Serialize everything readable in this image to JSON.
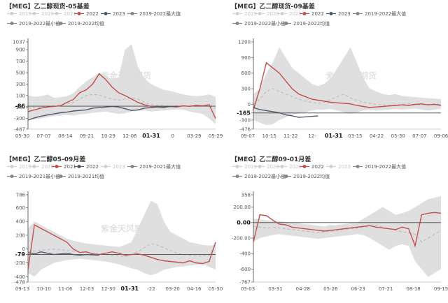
{
  "colors": {
    "range_band": "#dcdcdc",
    "avg_line": "#bdbdbd",
    "current": "#c0504d",
    "previous": "#4d5b6b",
    "axis": "#444444",
    "faint_legend": "#d0d0d0"
  },
  "watermark": "紫金天风期货",
  "chart_data": [
    {
      "type": "line",
      "title": "【MEG】乙二醇现货-05基差",
      "legend": [
        "2019",
        "2020",
        "2021",
        "2022",
        "2023",
        "2019-2022最大值",
        "2019-2022最小值",
        "2019-2022均值"
      ],
      "y_ticks": [
        "1037",
        "900",
        "700",
        "500",
        "300",
        "100",
        "-86",
        "-100",
        "-300",
        "-487"
      ],
      "ylim": [
        -487,
        1037
      ],
      "x_ticks": [
        "05-30",
        "07-07",
        "08-14",
        "09-21",
        "10-29",
        "12-06",
        "01-31",
        "0",
        "03-29",
        "05-29"
      ],
      "x_highlight": "01-31",
      "reference_value": -86,
      "max_range": [
        100,
        80,
        90,
        120,
        60,
        70,
        90,
        140,
        250,
        350,
        420,
        500,
        450,
        380,
        420,
        900,
        1000,
        600,
        400,
        300,
        250,
        200,
        180,
        150,
        120,
        100,
        90,
        100,
        120,
        80
      ],
      "min_range": [
        -300,
        -320,
        -300,
        -280,
        -260,
        -250,
        -240,
        -250,
        -230,
        -220,
        -200,
        -190,
        -180,
        -200,
        -220,
        -210,
        -180,
        -170,
        -160,
        -180,
        -170,
        -160,
        -150,
        -140,
        -150,
        -180,
        -200,
        -220,
        -300,
        -400
      ],
      "average": [
        -120,
        -110,
        -100,
        -90,
        -80,
        -60,
        -40,
        -20,
        40,
        100,
        120,
        110,
        70,
        40,
        20,
        40,
        60,
        40,
        -20,
        -60,
        -70,
        -80,
        -90,
        -80,
        -80,
        -80,
        -70,
        -70,
        -90,
        -120
      ],
      "series": [
        {
          "name": "2022",
          "values": [
            -180,
            -150,
            -120,
            -100,
            -90,
            -80,
            -20,
            30,
            150,
            200,
            300,
            480,
            380,
            250,
            150,
            100,
            40,
            -20,
            -60,
            -90,
            -100,
            -110,
            -90,
            -100,
            -80,
            -90,
            -70,
            -80,
            -60,
            -300
          ]
        },
        {
          "name": "2023",
          "values": [
            -330,
            -290,
            -260,
            -240,
            -220,
            -200,
            -190,
            -170,
            -160,
            -150,
            -120,
            -110,
            -100,
            -90,
            -100,
            -130,
            -160,
            -150,
            -120,
            -110,
            -100,
            -100,
            -90,
            -95
          ]
        }
      ]
    },
    {
      "type": "line",
      "title": "【MEG】乙二醇现货-09基差",
      "legend": [
        "2019",
        "2020",
        "2021",
        "2022",
        "2023",
        "2019-2022最大值",
        "2019-2022最小值",
        "2019-2022均值"
      ],
      "y_ticks": [
        "1200",
        "900",
        "600",
        "300",
        "0",
        "-165",
        "-300",
        "-476"
      ],
      "ylim": [
        -476,
        1200
      ],
      "x_ticks": [
        "09-07",
        "10-15",
        "11-22",
        "12-",
        "01-31",
        "03-15",
        "04-22",
        "05-30",
        "07-07",
        "09-06"
      ],
      "x_highlight": "01-31",
      "reference_value": -165,
      "max_range": [
        200,
        300,
        600,
        800,
        1100,
        900,
        700,
        600,
        500,
        400,
        350,
        400,
        500,
        700,
        900,
        1100,
        800,
        500,
        300,
        250,
        200,
        180,
        200,
        160,
        150,
        140,
        130,
        120,
        110,
        100
      ],
      "min_range": [
        -300,
        -350,
        -400,
        -380,
        -300,
        -250,
        -200,
        -180,
        -150,
        -120,
        -100,
        -100,
        -90,
        -120,
        -150,
        -180,
        -150,
        -120,
        -100,
        -120,
        -110,
        -100,
        -90,
        -100,
        -90,
        -80,
        -100,
        -120,
        -100,
        -90
      ],
      "average": [
        0,
        100,
        250,
        300,
        250,
        200,
        150,
        100,
        60,
        40,
        20,
        40,
        100,
        150,
        200,
        120,
        80,
        40,
        20,
        0,
        -10,
        -20,
        -10,
        0,
        10,
        0,
        -10,
        0,
        10,
        0
      ],
      "series": [
        {
          "name": "2022",
          "values": [
            -100,
            300,
            800,
            700,
            600,
            450,
            300,
            200,
            150,
            100,
            80,
            60,
            40,
            30,
            20,
            10,
            -20,
            -40,
            -60,
            -50,
            -40,
            -30,
            -20,
            -10,
            -20,
            0,
            10,
            -10,
            0,
            -20
          ]
        },
        {
          "name": "2023",
          "values": [
            -60,
            -100,
            -120,
            -140,
            -160,
            -200,
            -220,
            -250,
            -240,
            -230,
            -220
          ]
        }
      ]
    },
    {
      "type": "line",
      "title": "【MEG】乙二醇05-09月差",
      "legend": [
        "2019",
        "2020",
        "2021",
        "2022",
        "2023",
        "2019-2021最大值",
        "2019-2021最小值",
        "2019-2021均值"
      ],
      "y_ticks": [
        "786",
        "600",
        "400",
        "200",
        "0",
        "-79",
        "-200",
        "-400",
        "-478"
      ],
      "ylim": [
        -478,
        786
      ],
      "x_ticks": [
        "09-13",
        "10-10",
        "11-06",
        "12-03",
        "12-30",
        "01-31",
        "-22",
        "03-20",
        "04-16",
        "05-30"
      ],
      "x_highlight": "01-31",
      "reference_value": -79,
      "max_range": [
        300,
        400,
        350,
        300,
        250,
        200,
        150,
        120,
        100,
        80,
        70,
        60,
        50,
        40,
        30,
        60,
        100,
        300,
        500,
        700,
        650,
        400,
        250,
        200,
        150,
        100,
        80,
        60,
        50,
        60
      ],
      "min_range": [
        -350,
        -400,
        -300,
        -250,
        -200,
        -180,
        -160,
        -150,
        -140,
        -150,
        -160,
        -170,
        -180,
        -200,
        -220,
        -250,
        -280,
        -300,
        -350,
        -380,
        -350,
        -300,
        -280,
        -260,
        -250,
        -240,
        -230,
        -220,
        -260,
        -300
      ],
      "average": [
        -40,
        -30,
        -20,
        -10,
        0,
        -10,
        -20,
        -30,
        -40,
        -50,
        -60,
        -70,
        -80,
        -90,
        -100,
        -110,
        -80,
        -40,
        20,
        80,
        60,
        20,
        -20,
        -60,
        -80,
        -90,
        -100,
        -100,
        -90,
        60
      ],
      "series": [
        {
          "name": "2021",
          "values": [
            -300,
            350,
            300,
            250,
            200,
            150,
            100,
            0,
            -50,
            -40,
            -70,
            -80,
            -60,
            -40,
            -60,
            -90,
            -80,
            -70,
            -90,
            -120,
            -150,
            -170,
            -180,
            -190,
            -200,
            -170,
            -200,
            -210,
            -180,
            100
          ]
        },
        {
          "name": "2022",
          "values": [
            -50,
            -70,
            -40,
            -60,
            -80,
            -70,
            -60,
            -80,
            -90,
            -80,
            -85,
            -90
          ]
        }
      ]
    },
    {
      "type": "line",
      "title": "【MEG】乙二醇09-01月差",
      "legend": [
        "2019",
        "2020",
        "2021",
        "2022",
        "2023",
        "2019-2022最大值",
        "2019-2022最小值",
        "2019-2022均值"
      ],
      "y_ticks": [
        "358",
        "200.00",
        "0.00",
        "-200.00",
        "-400",
        "-600",
        "-767"
      ],
      "ylim": [
        -767,
        358
      ],
      "x_ticks": [
        "03-03",
        "03-31",
        "04-28",
        "05-26",
        "06-23",
        "07-21",
        "08-18",
        "09-15"
      ],
      "reference_value": 0,
      "max_range": [
        50,
        40,
        30,
        20,
        20,
        10,
        0,
        -10,
        -20,
        -30,
        -40,
        -50,
        -40,
        -30,
        -20,
        -10,
        0,
        50,
        100,
        150,
        200,
        150,
        100,
        120,
        150,
        200,
        250,
        300,
        320,
        340
      ],
      "min_range": [
        -250,
        -200,
        -180,
        -160,
        -150,
        -160,
        -170,
        -180,
        -190,
        -200,
        -210,
        -200,
        -190,
        -180,
        -170,
        -160,
        -150,
        -160,
        -200,
        -250,
        -300,
        -350,
        -300,
        -280,
        -300,
        -500,
        -600,
        -700,
        -650,
        -600
      ],
      "average": [
        -50,
        -60,
        -70,
        -60,
        -70,
        -80,
        -90,
        -100,
        -110,
        -120,
        -130,
        -120,
        -110,
        -100,
        -90,
        -80,
        -70,
        -60,
        -50,
        -40,
        -60,
        -80,
        -100,
        -120,
        -130,
        -150,
        -250,
        -200,
        -150,
        -100
      ],
      "series": [
        {
          "name": "2022",
          "values": [
            -250,
            100,
            90,
            30,
            -20,
            -30,
            -60,
            -70,
            -80,
            -90,
            -100,
            -110,
            -100,
            -90,
            -80,
            -70,
            -60,
            -50,
            -40,
            -60,
            -70,
            -80,
            -90,
            -60,
            -80,
            -300,
            100,
            120,
            130,
            120
          ]
        }
      ]
    }
  ]
}
